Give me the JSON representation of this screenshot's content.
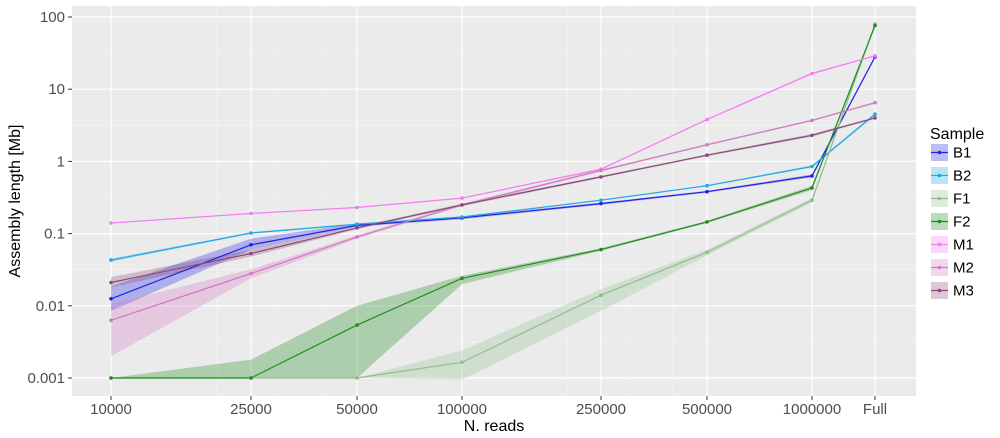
{
  "chart_data": {
    "type": "line",
    "xlabel": "N. reads",
    "ylabel": "Assembly length [Mb]",
    "categories": [
      "10000",
      "25000",
      "50000",
      "100000",
      "250000",
      "500000",
      "1000000",
      "Full"
    ],
    "y_scale": "log10",
    "ylim": [
      0.001,
      100
    ],
    "y_ticks": [
      "0.001",
      "0.01",
      "0.1",
      "1",
      "10",
      "100"
    ],
    "grid": true,
    "legend_title": "Sample",
    "legend_position": "right",
    "series": [
      {
        "name": "B1",
        "color": "#2222e6",
        "values": [
          0.0125,
          0.07,
          0.13,
          0.165,
          0.26,
          0.38,
          0.63,
          28
        ],
        "lower": [
          0.0085,
          0.06,
          0.125,
          0.158,
          0.25,
          0.37,
          0.6,
          27
        ],
        "upper": [
          0.0185,
          0.085,
          0.138,
          0.172,
          0.27,
          0.39,
          0.66,
          29
        ]
      },
      {
        "name": "B2",
        "color": "#1fa9e6",
        "values": [
          0.043,
          0.102,
          0.135,
          0.17,
          0.29,
          0.46,
          0.85,
          4.5
        ],
        "lower": [
          0.041,
          0.099,
          0.131,
          0.166,
          0.284,
          0.45,
          0.82,
          4.3
        ],
        "upper": [
          0.045,
          0.105,
          0.139,
          0.174,
          0.296,
          0.47,
          0.88,
          4.7
        ]
      },
      {
        "name": "F1",
        "color": "#8fbf8a",
        "values": [
          0.001,
          0.001,
          0.001,
          0.00165,
          0.014,
          0.055,
          0.29,
          80
        ],
        "lower": [
          0.001,
          0.001,
          0.001,
          0.00095,
          0.0085,
          0.05,
          0.27,
          78
        ],
        "upper": [
          0.001,
          0.001,
          0.001,
          0.0024,
          0.017,
          0.06,
          0.31,
          82
        ]
      },
      {
        "name": "F2",
        "color": "#1f8c1f",
        "values": [
          0.001,
          0.001,
          0.0054,
          0.024,
          0.06,
          0.145,
          0.43,
          76
        ],
        "lower": [
          0.001,
          0.001,
          0.001,
          0.02,
          0.058,
          0.14,
          0.4,
          74
        ],
        "upper": [
          0.001,
          0.0018,
          0.01,
          0.026,
          0.063,
          0.15,
          0.46,
          78
        ]
      },
      {
        "name": "M1",
        "color": "#f57cf5",
        "values": [
          0.14,
          0.19,
          0.23,
          0.31,
          0.78,
          3.8,
          16.5,
          29
        ],
        "lower": [
          0.138,
          0.187,
          0.226,
          0.305,
          0.76,
          3.7,
          16.0,
          28.5
        ],
        "upper": [
          0.142,
          0.193,
          0.234,
          0.315,
          0.8,
          3.9,
          17.0,
          29.5
        ]
      },
      {
        "name": "M2",
        "color": "#d178c4",
        "values": [
          0.0063,
          0.028,
          0.09,
          0.25,
          0.75,
          1.7,
          3.7,
          6.5
        ],
        "lower": [
          0.002,
          0.024,
          0.085,
          0.24,
          0.72,
          1.65,
          3.6,
          6.3
        ],
        "upper": [
          0.0105,
          0.032,
          0.095,
          0.26,
          0.78,
          1.75,
          3.8,
          6.7
        ]
      },
      {
        "name": "M3",
        "color": "#8a4a7a",
        "values": [
          0.021,
          0.053,
          0.12,
          0.25,
          0.61,
          1.22,
          2.3,
          4.0
        ],
        "lower": [
          0.018,
          0.048,
          0.115,
          0.24,
          0.59,
          1.18,
          2.2,
          3.9
        ],
        "upper": [
          0.025,
          0.06,
          0.125,
          0.26,
          0.63,
          1.26,
          2.4,
          4.1
        ]
      }
    ]
  }
}
